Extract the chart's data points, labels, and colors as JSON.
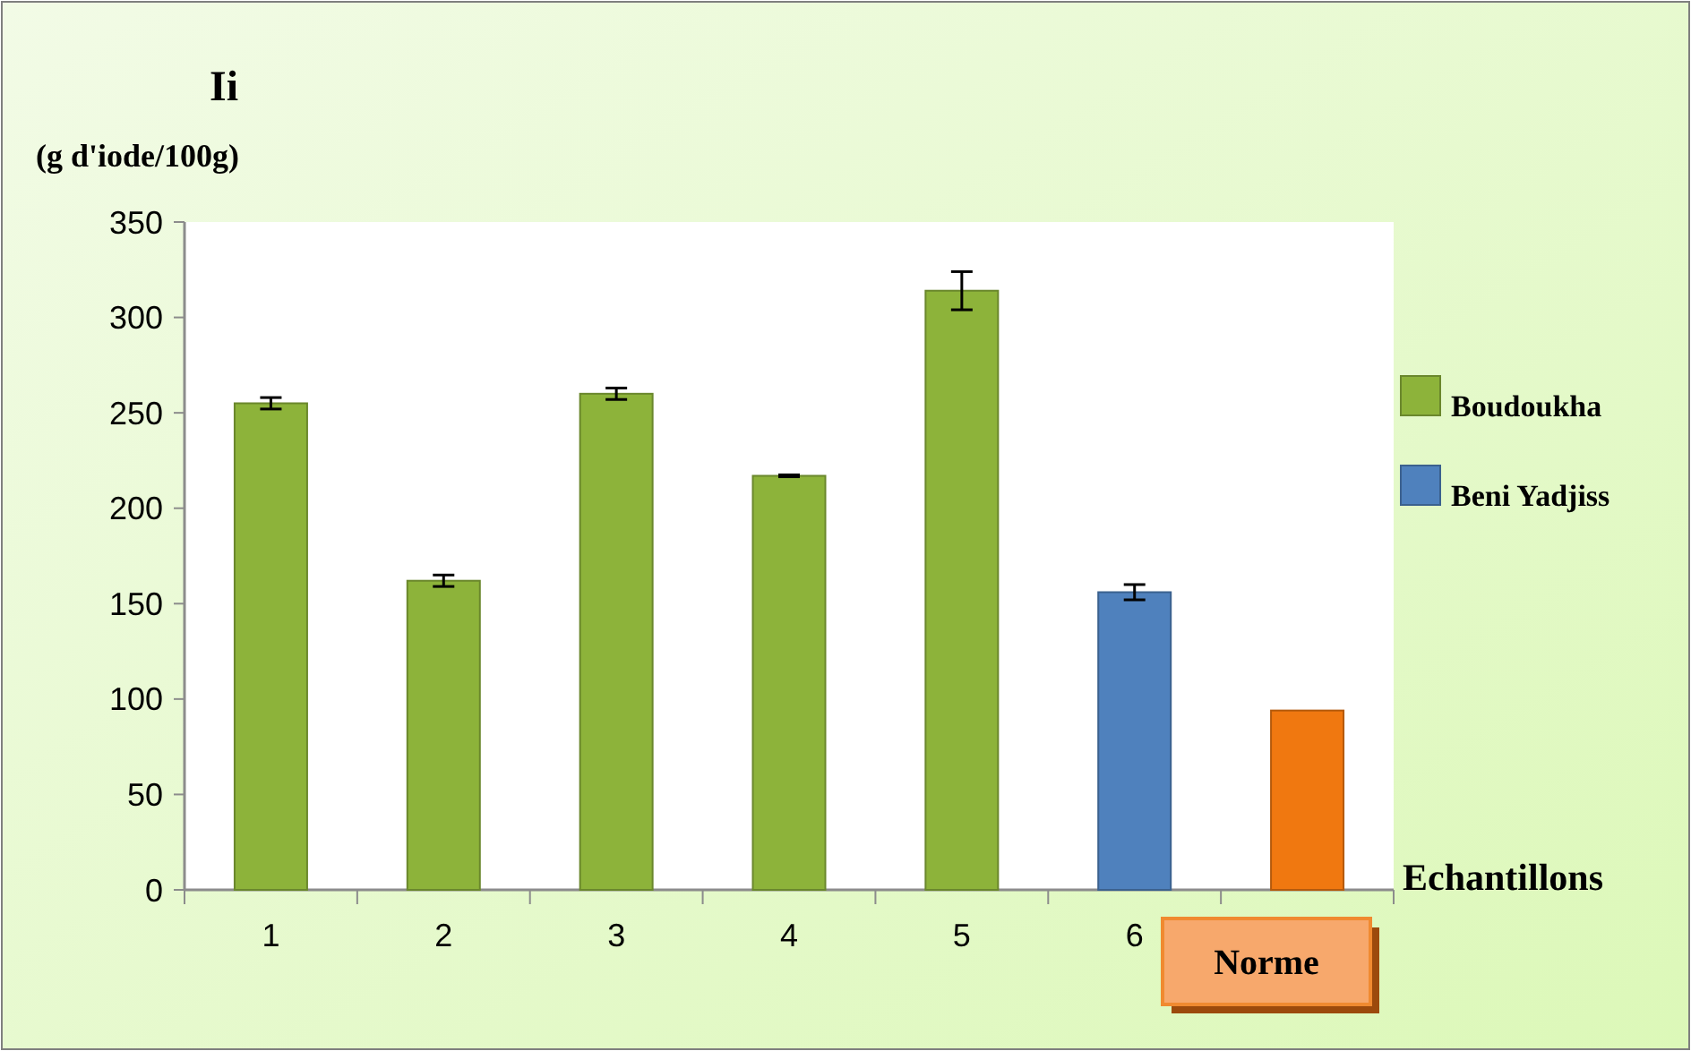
{
  "chart_data": {
    "type": "bar",
    "title": "Ii",
    "ylabel": "(g  d'iode/100g)",
    "xlabel": "Echantillons",
    "categories": [
      "1",
      "2",
      "3",
      "4",
      "5",
      "6",
      "Norme"
    ],
    "series": [
      {
        "name": "Boudoukha",
        "color": "#8db33a",
        "values": [
          255,
          162,
          260,
          217,
          314,
          null,
          null
        ],
        "errors": [
          3,
          3,
          3,
          0.5,
          10,
          null,
          null
        ]
      },
      {
        "name": "Beni Yadjiss",
        "color": "#4f81bd",
        "values": [
          null,
          null,
          null,
          null,
          null,
          156,
          null
        ],
        "errors": [
          null,
          null,
          null,
          null,
          null,
          4,
          null
        ]
      },
      {
        "color": "#f07810",
        "values": [
          null,
          null,
          null,
          null,
          null,
          null,
          94
        ]
      }
    ],
    "ylim": [
      0,
      350
    ],
    "yticks": [
      0,
      50,
      100,
      150,
      200,
      250,
      300,
      350
    ],
    "grid": false,
    "legend": "right"
  }
}
